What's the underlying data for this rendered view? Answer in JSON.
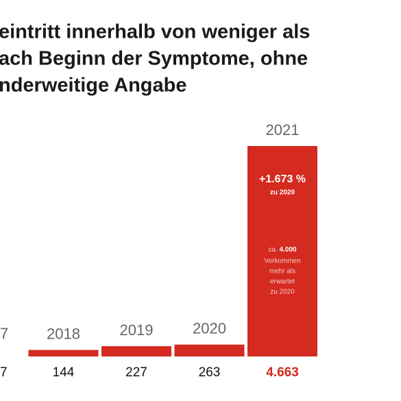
{
  "chart_data": {
    "type": "bar",
    "title_lines": [
      "eintritt innerhalb von weniger als",
      "ach Beginn der Symptome, ohne",
      "nderweitige Angabe"
    ],
    "categories": [
      "7",
      "2018",
      "2019",
      "2020",
      "2021"
    ],
    "values": [
      null,
      144,
      227,
      263,
      4663
    ],
    "value_labels": [
      "7",
      "144",
      "227",
      "263",
      "4.663"
    ],
    "color": "#d42a1f",
    "annotation": {
      "change": "+1.673 %",
      "change_ref": "zu 2020",
      "note_prefix": "ca.",
      "note_number": "4.000",
      "note_lines": [
        "Vorkommen",
        "mehr als",
        "erwartet",
        "zu 2020"
      ]
    }
  }
}
